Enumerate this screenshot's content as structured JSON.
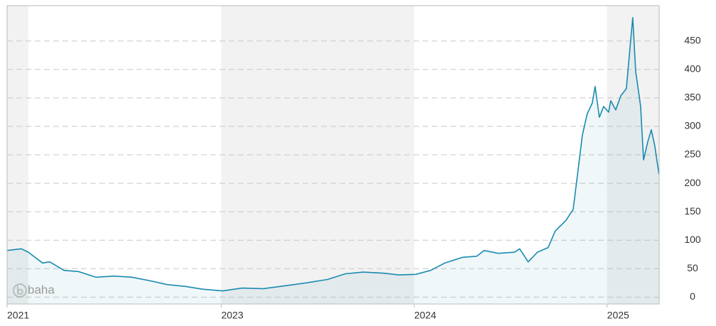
{
  "chart_data": {
    "type": "line",
    "watermark": "baha",
    "series": [
      {
        "color": "#1a8bb0",
        "x": [
          2021.89,
          2021.964,
          2022.0,
          2022.074,
          2022.111,
          2022.185,
          2022.259,
          2022.351,
          2022.443,
          2022.536,
          2022.628,
          2022.72,
          2022.812,
          2022.904,
          2023.008,
          2023.108,
          2023.218,
          2023.329,
          2023.44,
          2023.55,
          2023.643,
          2023.735,
          2023.846,
          2023.919,
          2024.008,
          2024.085,
          2024.159,
          2024.251,
          2024.325,
          2024.362,
          2024.436,
          2024.52,
          2024.547,
          2024.591,
          2024.639,
          2024.694,
          2024.731,
          2024.787,
          2024.824,
          2024.849,
          2024.872,
          2024.897,
          2024.923,
          2024.938,
          2024.96,
          2024.982,
          2025.008,
          2025.019,
          2025.045,
          2025.071,
          2025.1,
          2025.118,
          2025.133,
          2025.148,
          2025.174,
          2025.189,
          2025.21,
          2025.229,
          2025.247,
          2025.269
        ],
        "values": [
          82,
          85,
          79,
          60,
          62,
          47,
          45,
          35,
          37,
          35,
          29,
          22,
          19,
          14,
          11,
          16,
          15,
          20,
          25,
          31,
          41,
          44,
          42,
          39,
          40,
          47,
          60,
          70,
          72,
          82,
          77,
          79,
          85,
          62,
          79,
          87,
          116,
          135,
          154,
          222,
          285,
          322,
          341,
          370,
          316,
          335,
          325,
          345,
          329,
          354,
          366,
          435,
          491,
          397,
          335,
          241,
          272,
          294,
          266,
          216
        ]
      }
    ],
    "xlim": [
      2021.89,
      2025.27
    ],
    "xticks": [
      {
        "value": 2021.89,
        "label": "2021"
      },
      2023,
      2024,
      2025
    ],
    "ylim": [
      -12,
      512
    ],
    "yticks": [
      0,
      50,
      100,
      150,
      200,
      250,
      300,
      350,
      400,
      450
    ],
    "grid": true
  }
}
